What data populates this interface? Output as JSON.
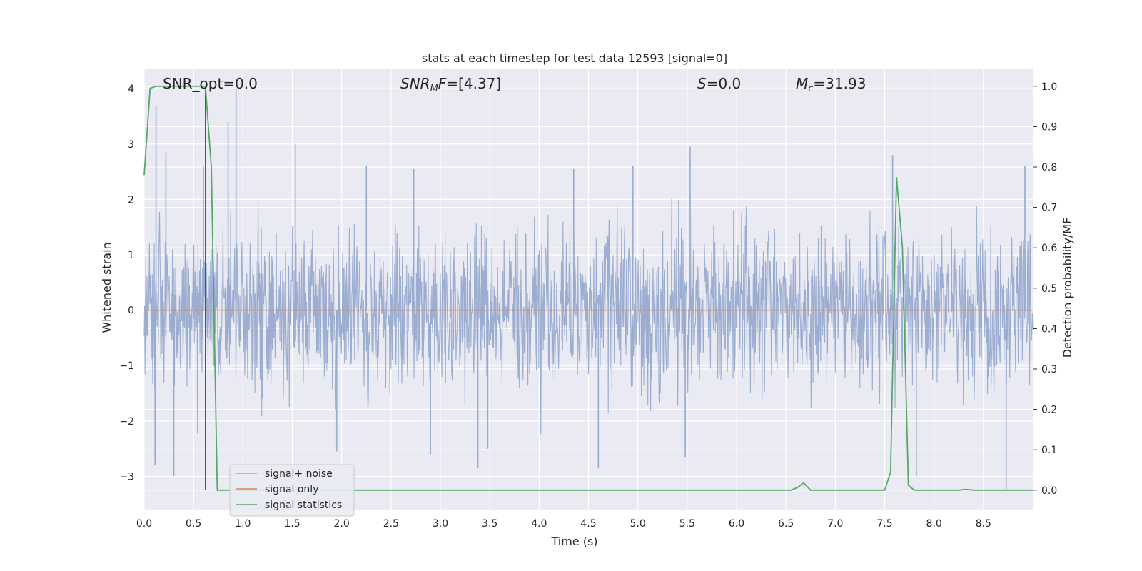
{
  "chart_data": {
    "type": "line",
    "title": "stats at each timestep for test data 12593 [signal=0]",
    "xlabel": "Time (s)",
    "ylabel_left": "Whitened strain",
    "ylabel_right": "Detection probability/MF",
    "xlim": [
      0.0,
      9.0
    ],
    "ylim_left": [
      -3.6,
      4.35
    ],
    "ylim_right": [
      -0.048,
      1.042
    ],
    "x_ticks": [
      "0.0",
      "0.5",
      "1.0",
      "1.5",
      "2.0",
      "2.5",
      "3.0",
      "3.5",
      "4.0",
      "4.5",
      "5.0",
      "5.5",
      "6.0",
      "6.5",
      "7.0",
      "7.5",
      "8.0",
      "8.5"
    ],
    "y_ticks_left": [
      "−3",
      "−2",
      "−1",
      "0",
      "1",
      "2",
      "3",
      "4"
    ],
    "y_ticks_right": [
      "0.0",
      "0.1",
      "0.2",
      "0.3",
      "0.4",
      "0.5",
      "0.6",
      "0.7",
      "0.8",
      "0.9",
      "1.0"
    ],
    "annotations": {
      "snr_opt": "SNR_opt=0.0",
      "snr_mf_main": "SNR",
      "snr_mf_sub": "M",
      "snr_mf_italic": "F",
      "snr_mf_value": "=[4.37]",
      "s_symbol": "S",
      "s_value": "=0.0",
      "mc_symbol": "M",
      "mc_sub": "c",
      "mc_value": "=31.93"
    },
    "vertical_marker_x": 0.62,
    "grid": true,
    "legend_placement": "lower-left",
    "series": [
      {
        "name": "signal+ noise",
        "color": "#97aacf",
        "axis": "left",
        "description_values": "noise, approx. between -2.9 and 4.0",
        "spikes": [
          {
            "x": 0.12,
            "y": 3.7
          },
          {
            "x": 0.22,
            "y": 2.85
          },
          {
            "x": 0.3,
            "y": -3.0
          },
          {
            "x": 0.11,
            "y": -2.8
          },
          {
            "x": 0.6,
            "y": 2.6
          },
          {
            "x": 0.93,
            "y": 4.0
          },
          {
            "x": 0.85,
            "y": 3.4
          },
          {
            "x": 1.53,
            "y": 3.0
          },
          {
            "x": 1.95,
            "y": -2.55
          },
          {
            "x": 2.25,
            "y": 2.6
          },
          {
            "x": 2.73,
            "y": 2.55
          },
          {
            "x": 3.38,
            "y": -2.85
          },
          {
            "x": 3.48,
            "y": -2.5
          },
          {
            "x": 4.35,
            "y": 2.55
          },
          {
            "x": 4.95,
            "y": 2.6
          },
          {
            "x": 5.53,
            "y": 2.95
          },
          {
            "x": 5.48,
            "y": -2.65
          },
          {
            "x": 7.58,
            "y": 2.8
          },
          {
            "x": 7.82,
            "y": -3.0
          },
          {
            "x": 8.73,
            "y": -3.25
          },
          {
            "x": 8.92,
            "y": 2.6
          },
          {
            "x": 4.6,
            "y": -2.85
          },
          {
            "x": 2.9,
            "y": -2.6
          }
        ]
      },
      {
        "name": "signal only",
        "color": "#dd8452",
        "axis": "left",
        "values": [
          [
            0.0,
            0.0
          ],
          [
            9.0,
            0.0
          ]
        ]
      },
      {
        "name": "signal statistics",
        "color": "#55a868",
        "axis": "right",
        "values": [
          [
            0.0,
            0.78
          ],
          [
            0.06,
            0.995
          ],
          [
            0.12,
            1.0
          ],
          [
            0.56,
            1.0
          ],
          [
            0.62,
            1.0
          ],
          [
            0.68,
            0.8
          ],
          [
            0.74,
            0.0
          ],
          [
            6.55,
            0.0
          ],
          [
            6.62,
            0.007
          ],
          [
            6.68,
            0.018
          ],
          [
            6.75,
            0.0
          ],
          [
            7.5,
            0.0
          ],
          [
            7.56,
            0.045
          ],
          [
            7.62,
            0.775
          ],
          [
            7.68,
            0.6
          ],
          [
            7.74,
            0.012
          ],
          [
            7.8,
            0.0
          ],
          [
            8.25,
            0.0
          ],
          [
            8.32,
            0.002
          ],
          [
            8.4,
            0.0
          ],
          [
            9.0,
            0.0
          ]
        ]
      }
    ]
  }
}
